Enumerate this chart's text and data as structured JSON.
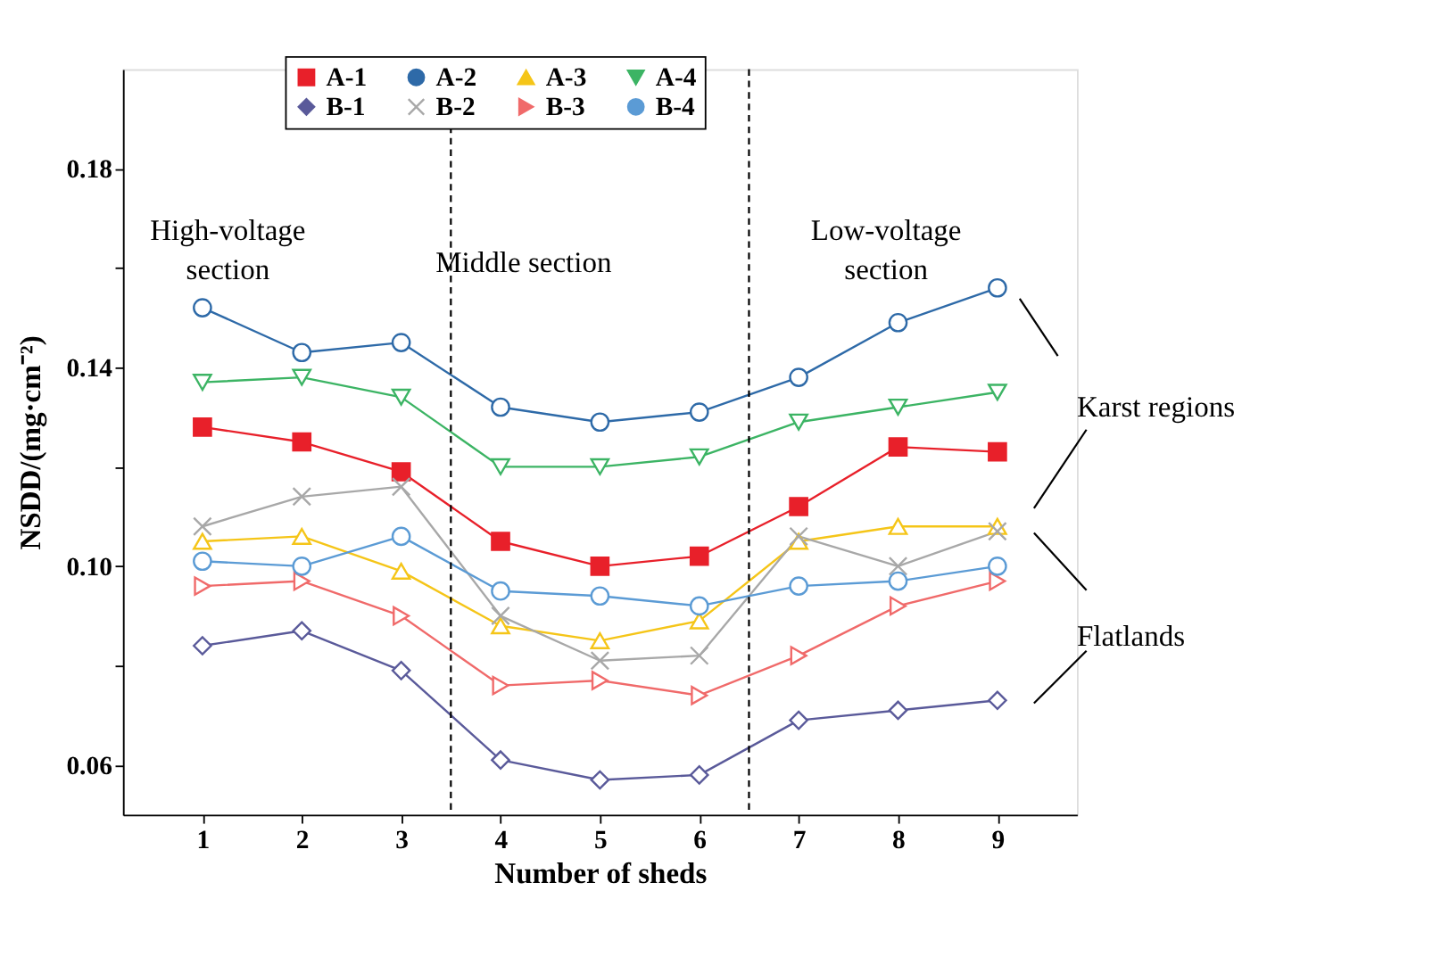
{
  "chart_data": {
    "type": "line",
    "xlabel": "Number of sheds",
    "ylabel": "NSDD/(mg·cm⁻²)",
    "x": [
      1,
      2,
      3,
      4,
      5,
      6,
      7,
      8,
      9
    ],
    "xlim": [
      0.2,
      9.8
    ],
    "xticks": [
      1,
      2,
      3,
      4,
      5,
      6,
      7,
      8,
      9
    ],
    "ylim": [
      0.05,
      0.2
    ],
    "yticks": [
      0.06,
      {
        "value": 0.08,
        "label": null
      },
      {
        "value": 0.1,
        "label": "0.10"
      },
      {
        "value": 0.12,
        "label": null
      },
      0.14,
      {
        "value": 0.16,
        "label": null
      },
      0.18
    ],
    "grid": false,
    "legend": "top",
    "line_style": "solid",
    "series": [
      {
        "name": "A-1",
        "color": "#e8202a",
        "marker": "square",
        "values": [
          0.128,
          0.125,
          0.119,
          0.105,
          0.1,
          0.102,
          0.112,
          0.124,
          0.123
        ]
      },
      {
        "name": "A-2",
        "color": "#2e6aa8",
        "marker": "circle",
        "values": [
          0.152,
          0.143,
          0.145,
          0.132,
          0.129,
          0.131,
          0.138,
          0.149,
          0.156
        ]
      },
      {
        "name": "A-3",
        "color": "#f5c518",
        "marker": "triangle",
        "values": [
          0.105,
          0.106,
          0.099,
          0.088,
          0.085,
          0.089,
          0.105,
          0.108,
          0.108
        ]
      },
      {
        "name": "A-4",
        "color": "#3cb464",
        "marker": "triangle-down",
        "values": [
          0.137,
          0.138,
          0.134,
          0.12,
          0.12,
          0.122,
          0.129,
          0.132,
          0.135
        ]
      },
      {
        "name": "B-1",
        "color": "#5a5a9a",
        "marker": "diamond",
        "values": [
          0.084,
          0.087,
          0.079,
          0.061,
          0.057,
          0.058,
          0.069,
          0.071,
          0.073
        ]
      },
      {
        "name": "B-2",
        "color": "#a8a8a8",
        "marker": "cross",
        "values": [
          0.108,
          0.114,
          0.116,
          0.09,
          0.081,
          0.082,
          0.106,
          0.1,
          0.107
        ]
      },
      {
        "name": "B-3",
        "color": "#f06a6a",
        "marker": "triangle-right",
        "values": [
          0.096,
          0.097,
          0.09,
          0.076,
          0.077,
          0.074,
          0.082,
          0.092,
          0.097
        ]
      },
      {
        "name": "B-4",
        "color": "#5b9bd5",
        "marker": "circle",
        "values": [
          0.101,
          0.1,
          0.106,
          0.095,
          0.094,
          0.092,
          0.096,
          0.097,
          0.1
        ]
      }
    ],
    "ref_lines": [
      {
        "axis": "x",
        "value": 3.5,
        "line_style": "dashed"
      },
      {
        "axis": "x",
        "value": 6.5,
        "line_style": "dashed"
      }
    ],
    "annotations": [
      "High-voltage section",
      "Middle section",
      "Low-voltage section",
      "Karst regions",
      "Flatlands"
    ]
  }
}
